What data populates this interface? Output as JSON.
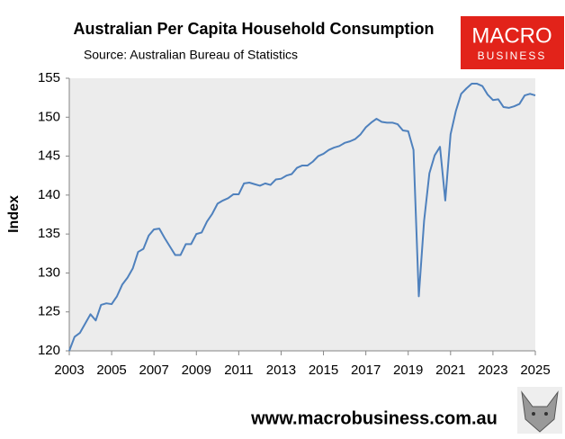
{
  "chart_data": {
    "type": "line",
    "title": "Australian Per Capita Household Consumption",
    "subtitle": "Source: Australian Bureau of Statistics",
    "y_label": "Index",
    "logo": [
      "MACRO",
      "BUSINESS"
    ],
    "footer": "www.macrobusiness.com.au",
    "x": [
      2003,
      2003.25,
      2003.5,
      2003.75,
      2004,
      2004.25,
      2004.5,
      2004.75,
      2005,
      2005.25,
      2005.5,
      2005.75,
      2006,
      2006.25,
      2006.5,
      2006.75,
      2007,
      2007.25,
      2007.5,
      2007.75,
      2008,
      2008.25,
      2008.5,
      2008.75,
      2009,
      2009.25,
      2009.5,
      2009.75,
      2010,
      2010.25,
      2010.5,
      2010.75,
      2011,
      2011.25,
      2011.5,
      2011.75,
      2012,
      2012.25,
      2012.5,
      2012.75,
      2013,
      2013.25,
      2013.5,
      2013.75,
      2014,
      2014.25,
      2014.5,
      2014.75,
      2015,
      2015.25,
      2015.5,
      2015.75,
      2016,
      2016.25,
      2016.5,
      2016.75,
      2017,
      2017.25,
      2017.5,
      2017.75,
      2018,
      2018.25,
      2018.5,
      2018.75,
      2019,
      2019.25,
      2019.5,
      2019.75,
      2020,
      2020.25,
      2020.5,
      2020.75,
      2021,
      2021.25,
      2021.5,
      2021.75,
      2022,
      2022.25,
      2022.5,
      2022.75,
      2023,
      2023.25,
      2023.5,
      2023.75,
      2024,
      2024.25,
      2024.5,
      2024.75,
      2025
    ],
    "series": [
      {
        "name": "Per capita household consumption",
        "color": "#4f81bd",
        "values": [
          120,
          121.8,
          122.3,
          123.5,
          124.7,
          123.9,
          125.9,
          126.1,
          126.0,
          127.0,
          128.5,
          129.4,
          130.6,
          132.7,
          133.1,
          134.8,
          135.6,
          135.7,
          134.5,
          133.4,
          132.3,
          132.3,
          133.7,
          133.7,
          135.0,
          135.2,
          136.6,
          137.6,
          138.9,
          139.3,
          139.6,
          140.1,
          140.1,
          141.5,
          141.6,
          141.4,
          141.2,
          141.5,
          141.3,
          142.0,
          142.1,
          142.5,
          142.7,
          143.5,
          143.8,
          143.8,
          144.3,
          145.0,
          145.3,
          145.8,
          146.1,
          146.3,
          146.7,
          146.9,
          147.2,
          147.8,
          148.7,
          149.3,
          149.8,
          149.4,
          149.3,
          149.3,
          149.1,
          148.3,
          148.2,
          145.8,
          127.0,
          136.7,
          142.8,
          145.1,
          146.2,
          139.3,
          147.8,
          150.8,
          153.0,
          153.7,
          154.3,
          154.3,
          154.0,
          152.9,
          152.2,
          152.3,
          151.3,
          151.2,
          151.4,
          151.7,
          152.8,
          153.0,
          152.8
        ]
      }
    ],
    "xlim": [
      2003,
      2025
    ],
    "xticks": [
      2003,
      2005,
      2007,
      2009,
      2011,
      2013,
      2015,
      2017,
      2019,
      2021,
      2023,
      2025
    ],
    "ylim": [
      120,
      155
    ],
    "yticks": [
      120,
      125,
      130,
      135,
      140,
      145,
      150,
      155
    ],
    "grid": false
  }
}
